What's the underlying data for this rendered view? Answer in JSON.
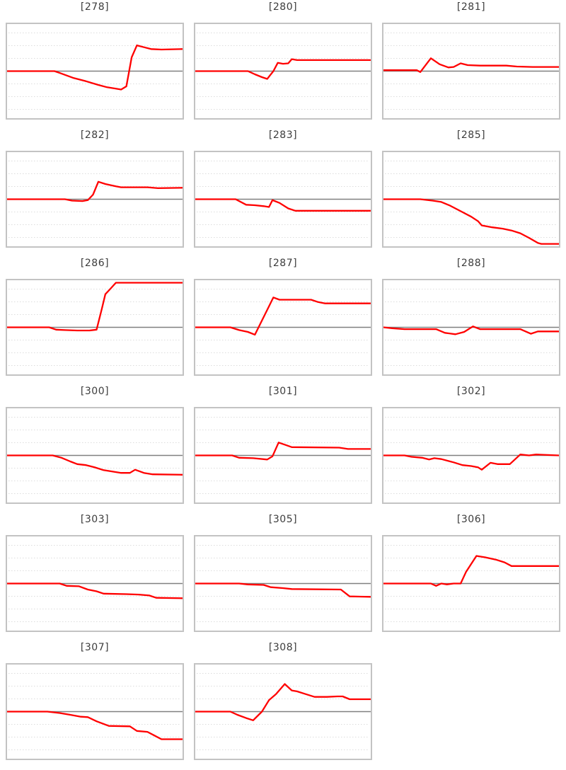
{
  "page": {
    "background": "#ffffff",
    "description": "Grid of 17 small line charts (sparklines), 3 per row, each titled with a bracketed index"
  },
  "style": {
    "line_color": "#ff0000",
    "zero_line_color": "#808080",
    "grid_color": "#dcdcdc",
    "border_color": "#c3c3c3",
    "title_color": "#3c3c3c"
  },
  "chart_data": [
    {
      "title": "[278]",
      "type": "line",
      "x": "index 0-1 (no tick labels shown)",
      "ylim": [
        -1,
        1
      ],
      "baseline": 0,
      "grid": "dotted horizontal lines, solid gray zero line",
      "points": [
        [
          0,
          0
        ],
        [
          0.27,
          0
        ],
        [
          0.3,
          -0.04
        ],
        [
          0.38,
          -0.15
        ],
        [
          0.45,
          -0.22
        ],
        [
          0.52,
          -0.3
        ],
        [
          0.57,
          -0.35
        ],
        [
          0.62,
          -0.38
        ],
        [
          0.65,
          -0.4
        ],
        [
          0.68,
          -0.33
        ],
        [
          0.71,
          0.3
        ],
        [
          0.74,
          0.56
        ],
        [
          0.78,
          0.52
        ],
        [
          0.82,
          0.48
        ],
        [
          0.88,
          0.47
        ],
        [
          1,
          0.48
        ]
      ]
    },
    {
      "title": "[280]",
      "type": "line",
      "x": "index 0-1 (no tick labels shown)",
      "ylim": [
        -1,
        1
      ],
      "baseline": 0,
      "grid": "dotted horizontal lines, solid gray zero line",
      "points": [
        [
          0,
          0
        ],
        [
          0.3,
          0
        ],
        [
          0.34,
          -0.07
        ],
        [
          0.38,
          -0.13
        ],
        [
          0.41,
          -0.17
        ],
        [
          0.445,
          0
        ],
        [
          0.47,
          0.18
        ],
        [
          0.5,
          0.16
        ],
        [
          0.53,
          0.17
        ],
        [
          0.55,
          0.26
        ],
        [
          0.58,
          0.24
        ],
        [
          1,
          0.24
        ]
      ]
    },
    {
      "title": "[281]",
      "type": "line",
      "x": "index 0-1 (no tick labels shown)",
      "ylim": [
        -1,
        1
      ],
      "baseline": 0,
      "grid": "dotted horizontal lines, solid gray zero line",
      "points": [
        [
          0,
          0.02
        ],
        [
          0.19,
          0.02
        ],
        [
          0.21,
          -0.02
        ],
        [
          0.27,
          0.28
        ],
        [
          0.32,
          0.15
        ],
        [
          0.37,
          0.08
        ],
        [
          0.4,
          0.09
        ],
        [
          0.44,
          0.17
        ],
        [
          0.48,
          0.13
        ],
        [
          0.55,
          0.12
        ],
        [
          0.7,
          0.12
        ],
        [
          0.76,
          0.1
        ],
        [
          0.85,
          0.09
        ],
        [
          1,
          0.09
        ]
      ]
    },
    {
      "title": "[282]",
      "type": "line",
      "x": "index 0-1 (no tick labels shown)",
      "ylim": [
        -1,
        1
      ],
      "baseline": 0,
      "grid": "dotted horizontal lines, solid gray zero line",
      "points": [
        [
          0,
          0
        ],
        [
          0.33,
          0
        ],
        [
          0.37,
          -0.03
        ],
        [
          0.43,
          -0.04
        ],
        [
          0.46,
          -0.02
        ],
        [
          0.49,
          0.1
        ],
        [
          0.52,
          0.38
        ],
        [
          0.56,
          0.33
        ],
        [
          0.62,
          0.28
        ],
        [
          0.65,
          0.26
        ],
        [
          0.8,
          0.26
        ],
        [
          0.86,
          0.24
        ],
        [
          1,
          0.25
        ]
      ]
    },
    {
      "title": "[283]",
      "type": "line",
      "x": "index 0-1 (no tick labels shown)",
      "ylim": [
        -1,
        1
      ],
      "baseline": 0,
      "grid": "dotted horizontal lines, solid gray zero line",
      "points": [
        [
          0,
          0
        ],
        [
          0.23,
          0
        ],
        [
          0.29,
          -0.12
        ],
        [
          0.34,
          -0.13
        ],
        [
          0.39,
          -0.15
        ],
        [
          0.42,
          -0.17
        ],
        [
          0.44,
          -0.02
        ],
        [
          0.48,
          -0.08
        ],
        [
          0.53,
          -0.2
        ],
        [
          0.57,
          -0.25
        ],
        [
          1,
          -0.25
        ]
      ]
    },
    {
      "title": "[285]",
      "type": "line",
      "x": "index 0-1 (no tick labels shown)",
      "ylim": [
        -1,
        1
      ],
      "baseline": 0,
      "grid": "dotted horizontal lines, solid gray zero line",
      "points": [
        [
          0,
          0
        ],
        [
          0.21,
          0
        ],
        [
          0.28,
          -0.03
        ],
        [
          0.33,
          -0.06
        ],
        [
          0.38,
          -0.14
        ],
        [
          0.44,
          -0.26
        ],
        [
          0.5,
          -0.38
        ],
        [
          0.54,
          -0.48
        ],
        [
          0.56,
          -0.57
        ],
        [
          0.62,
          -0.61
        ],
        [
          0.68,
          -0.64
        ],
        [
          0.73,
          -0.68
        ],
        [
          0.78,
          -0.74
        ],
        [
          0.83,
          -0.84
        ],
        [
          0.88,
          -0.95
        ],
        [
          0.9,
          -0.97
        ],
        [
          1,
          -0.97
        ]
      ]
    },
    {
      "title": "[286]",
      "type": "line",
      "x": "index 0-1 (no tick labels shown)",
      "ylim": [
        -1,
        1
      ],
      "baseline": 0,
      "grid": "dotted horizontal lines, solid gray zero line",
      "points": [
        [
          0,
          0
        ],
        [
          0.24,
          0
        ],
        [
          0.28,
          -0.05
        ],
        [
          0.33,
          -0.06
        ],
        [
          0.4,
          -0.07
        ],
        [
          0.47,
          -0.07
        ],
        [
          0.51,
          -0.05
        ],
        [
          0.54,
          0.4
        ],
        [
          0.56,
          0.72
        ],
        [
          0.58,
          0.8
        ],
        [
          0.62,
          0.97
        ],
        [
          1,
          0.97
        ]
      ]
    },
    {
      "title": "[287]",
      "type": "line",
      "x": "index 0-1 (no tick labels shown)",
      "ylim": [
        -1,
        1
      ],
      "baseline": 0,
      "grid": "dotted horizontal lines, solid gray zero line",
      "points": [
        [
          0,
          0
        ],
        [
          0.2,
          0
        ],
        [
          0.25,
          -0.06
        ],
        [
          0.3,
          -0.1
        ],
        [
          0.34,
          -0.16
        ],
        [
          0.445,
          0.65
        ],
        [
          0.48,
          0.6
        ],
        [
          0.66,
          0.6
        ],
        [
          0.7,
          0.55
        ],
        [
          0.74,
          0.52
        ],
        [
          1,
          0.52
        ]
      ]
    },
    {
      "title": "[288]",
      "type": "line",
      "x": "index 0-1 (no tick labels shown)",
      "ylim": [
        -1,
        1
      ],
      "baseline": 0,
      "grid": "dotted horizontal lines, solid gray zero line",
      "points": [
        [
          0,
          0
        ],
        [
          0.05,
          -0.02
        ],
        [
          0.12,
          -0.04
        ],
        [
          0.3,
          -0.04
        ],
        [
          0.35,
          -0.12
        ],
        [
          0.41,
          -0.15
        ],
        [
          0.46,
          -0.1
        ],
        [
          0.51,
          0.02
        ],
        [
          0.55,
          -0.04
        ],
        [
          0.78,
          -0.04
        ],
        [
          0.84,
          -0.14
        ],
        [
          0.88,
          -0.09
        ],
        [
          1,
          -0.09
        ]
      ]
    },
    {
      "title": "[300]",
      "type": "line",
      "x": "index 0-1 (no tick labels shown)",
      "ylim": [
        -1,
        1
      ],
      "baseline": 0,
      "grid": "dotted horizontal lines, solid gray zero line",
      "points": [
        [
          0,
          0
        ],
        [
          0.26,
          0
        ],
        [
          0.31,
          -0.05
        ],
        [
          0.36,
          -0.13
        ],
        [
          0.4,
          -0.19
        ],
        [
          0.45,
          -0.21
        ],
        [
          0.5,
          -0.26
        ],
        [
          0.55,
          -0.32
        ],
        [
          0.6,
          -0.35
        ],
        [
          0.65,
          -0.38
        ],
        [
          0.7,
          -0.38
        ],
        [
          0.73,
          -0.31
        ],
        [
          0.78,
          -0.38
        ],
        [
          0.83,
          -0.41
        ],
        [
          1,
          -0.42
        ]
      ]
    },
    {
      "title": "[301]",
      "type": "line",
      "x": "index 0-1 (no tick labels shown)",
      "ylim": [
        -1,
        1
      ],
      "baseline": 0,
      "grid": "dotted horizontal lines, solid gray zero line",
      "points": [
        [
          0,
          0
        ],
        [
          0.21,
          0
        ],
        [
          0.25,
          -0.05
        ],
        [
          0.33,
          -0.06
        ],
        [
          0.41,
          -0.09
        ],
        [
          0.44,
          -0.02
        ],
        [
          0.475,
          0.28
        ],
        [
          0.52,
          0.22
        ],
        [
          0.55,
          0.18
        ],
        [
          0.82,
          0.17
        ],
        [
          0.87,
          0.14
        ],
        [
          1,
          0.14
        ]
      ]
    },
    {
      "title": "[302]",
      "type": "line",
      "x": "index 0-1 (no tick labels shown)",
      "ylim": [
        -1,
        1
      ],
      "baseline": 0,
      "grid": "dotted horizontal lines, solid gray zero line",
      "points": [
        [
          0,
          0
        ],
        [
          0.12,
          0
        ],
        [
          0.16,
          -0.03
        ],
        [
          0.22,
          -0.05
        ],
        [
          0.26,
          -0.09
        ],
        [
          0.29,
          -0.06
        ],
        [
          0.33,
          -0.08
        ],
        [
          0.4,
          -0.15
        ],
        [
          0.45,
          -0.21
        ],
        [
          0.5,
          -0.23
        ],
        [
          0.54,
          -0.26
        ],
        [
          0.56,
          -0.31
        ],
        [
          0.61,
          -0.16
        ],
        [
          0.65,
          -0.19
        ],
        [
          0.72,
          -0.19
        ],
        [
          0.78,
          0.02
        ],
        [
          0.83,
          0
        ],
        [
          0.87,
          0.02
        ],
        [
          1,
          0
        ]
      ]
    },
    {
      "title": "[303]",
      "type": "line",
      "x": "index 0-1 (no tick labels shown)",
      "ylim": [
        -1,
        1
      ],
      "baseline": 0,
      "grid": "dotted horizontal lines, solid gray zero line",
      "points": [
        [
          0,
          0
        ],
        [
          0.3,
          0
        ],
        [
          0.34,
          -0.05
        ],
        [
          0.41,
          -0.06
        ],
        [
          0.46,
          -0.13
        ],
        [
          0.51,
          -0.17
        ],
        [
          0.55,
          -0.22
        ],
        [
          0.68,
          -0.23
        ],
        [
          0.75,
          -0.24
        ],
        [
          0.81,
          -0.26
        ],
        [
          0.85,
          -0.31
        ],
        [
          1,
          -0.32
        ]
      ]
    },
    {
      "title": "[305]",
      "type": "line",
      "x": "index 0-1 (no tick labels shown)",
      "ylim": [
        -1,
        1
      ],
      "baseline": 0,
      "grid": "dotted horizontal lines, solid gray zero line",
      "points": [
        [
          0,
          0
        ],
        [
          0.25,
          0
        ],
        [
          0.3,
          -0.02
        ],
        [
          0.39,
          -0.03
        ],
        [
          0.43,
          -0.08
        ],
        [
          0.5,
          -0.1
        ],
        [
          0.55,
          -0.12
        ],
        [
          0.83,
          -0.13
        ],
        [
          0.88,
          -0.28
        ],
        [
          1,
          -0.29
        ]
      ]
    },
    {
      "title": "[306]",
      "type": "line",
      "x": "index 0-1 (no tick labels shown)",
      "ylim": [
        -1,
        1
      ],
      "baseline": 0,
      "grid": "dotted horizontal lines, solid gray zero line",
      "points": [
        [
          0,
          0
        ],
        [
          0.27,
          0
        ],
        [
          0.3,
          -0.05
        ],
        [
          0.33,
          0
        ],
        [
          0.36,
          -0.02
        ],
        [
          0.4,
          0
        ],
        [
          0.44,
          0
        ],
        [
          0.47,
          0.25
        ],
        [
          0.53,
          0.6
        ],
        [
          0.58,
          0.57
        ],
        [
          0.64,
          0.52
        ],
        [
          0.69,
          0.46
        ],
        [
          0.73,
          0.38
        ],
        [
          1,
          0.38
        ]
      ]
    },
    {
      "title": "[307]",
      "type": "line",
      "x": "index 0-1 (no tick labels shown)",
      "ylim": [
        -1,
        1
      ],
      "baseline": 0,
      "grid": "dotted horizontal lines, solid gray zero line",
      "points": [
        [
          0,
          0
        ],
        [
          0.23,
          0
        ],
        [
          0.3,
          -0.03
        ],
        [
          0.36,
          -0.07
        ],
        [
          0.42,
          -0.11
        ],
        [
          0.46,
          -0.12
        ],
        [
          0.51,
          -0.21
        ],
        [
          0.58,
          -0.31
        ],
        [
          0.7,
          -0.32
        ],
        [
          0.74,
          -0.42
        ],
        [
          0.8,
          -0.44
        ],
        [
          0.84,
          -0.52
        ],
        [
          0.88,
          -0.6
        ],
        [
          1,
          -0.6
        ]
      ]
    },
    {
      "title": "[308]",
      "type": "line",
      "x": "index 0-1 (no tick labels shown)",
      "ylim": [
        -1,
        1
      ],
      "baseline": 0,
      "grid": "dotted horizontal lines, solid gray zero line",
      "points": [
        [
          0,
          0
        ],
        [
          0.2,
          0
        ],
        [
          0.24,
          -0.07
        ],
        [
          0.29,
          -0.14
        ],
        [
          0.33,
          -0.19
        ],
        [
          0.38,
          0
        ],
        [
          0.42,
          0.25
        ],
        [
          0.46,
          0.38
        ],
        [
          0.51,
          0.6
        ],
        [
          0.55,
          0.46
        ],
        [
          0.58,
          0.44
        ],
        [
          0.63,
          0.38
        ],
        [
          0.68,
          0.32
        ],
        [
          0.75,
          0.32
        ],
        [
          0.81,
          0.33
        ],
        [
          0.84,
          0.33
        ],
        [
          0.88,
          0.27
        ],
        [
          1,
          0.27
        ]
      ]
    }
  ]
}
